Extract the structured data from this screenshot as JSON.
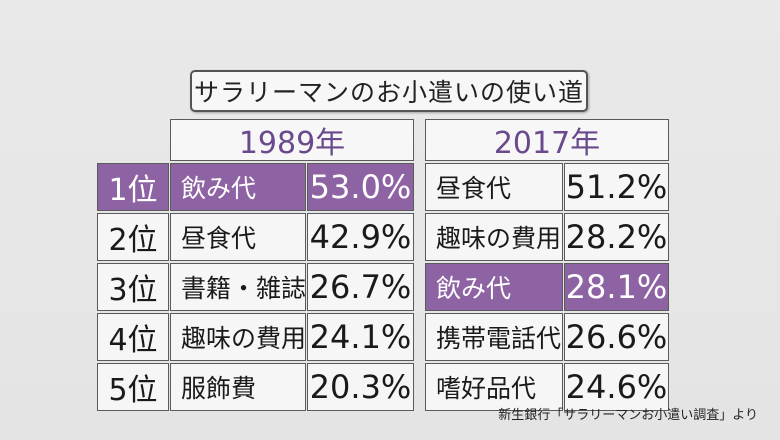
{
  "title": "サラリーマンのお小遣いの使い道",
  "source": "新生銀行「サラリーマンお小遣い調査」より",
  "colors": {
    "highlight": "#8e63a3",
    "header_text": "#6a4a8c",
    "cell_bg": "#f6f6f6"
  },
  "chart_data": {
    "type": "table",
    "tables": [
      {
        "year": "1989年",
        "rows": [
          {
            "rank": "1位",
            "item": "飲み代",
            "value": "53.0%",
            "highlighted": true
          },
          {
            "rank": "2位",
            "item": "昼食代",
            "value": "42.9%",
            "highlighted": false
          },
          {
            "rank": "3位",
            "item": "書籍・雑誌代",
            "value": "26.7%",
            "highlighted": false
          },
          {
            "rank": "4位",
            "item": "趣味の費用",
            "value": "24.1%",
            "highlighted": false
          },
          {
            "rank": "5位",
            "item": "服飾費",
            "value": "20.3%",
            "highlighted": false
          }
        ]
      },
      {
        "year": "2017年",
        "rows": [
          {
            "item": "昼食代",
            "value": "51.2%",
            "highlighted": false
          },
          {
            "item": "趣味の費用",
            "value": "28.2%",
            "highlighted": false
          },
          {
            "item": "飲み代",
            "value": "28.1%",
            "highlighted": true
          },
          {
            "item": "携帯電話代",
            "value": "26.6%",
            "highlighted": false
          },
          {
            "item": "嗜好品代",
            "value": "24.6%",
            "highlighted": false
          }
        ]
      }
    ]
  }
}
